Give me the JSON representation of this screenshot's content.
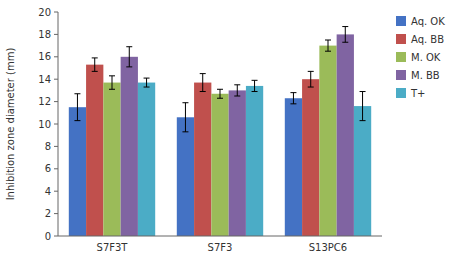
{
  "chart_data": {
    "type": "bar",
    "ylabel": "Inhibition zone diameter (mm)",
    "categories": [
      "S7F3T",
      "S7F3",
      "S13PC6"
    ],
    "series": [
      {
        "name": "Aq. OK",
        "color": "#4472C4",
        "values": [
          11.5,
          10.6,
          12.3
        ],
        "errors": [
          1.2,
          1.3,
          0.5
        ]
      },
      {
        "name": "Aq. BB",
        "color": "#C0504D",
        "values": [
          15.3,
          13.7,
          14.0
        ],
        "errors": [
          0.6,
          0.8,
          0.7
        ]
      },
      {
        "name": "M. OK",
        "color": "#9BBB59",
        "values": [
          13.7,
          12.7,
          17.0
        ],
        "errors": [
          0.6,
          0.4,
          0.5
        ]
      },
      {
        "name": "M. BB",
        "color": "#8064A2",
        "values": [
          16.0,
          13.0,
          18.0
        ],
        "errors": [
          0.9,
          0.5,
          0.7
        ]
      },
      {
        "name": "T+",
        "color": "#4BACC6",
        "values": [
          13.7,
          13.4,
          11.6
        ],
        "errors": [
          0.4,
          0.5,
          1.3
        ]
      }
    ],
    "ylim": [
      0,
      20
    ],
    "yticks": [
      0,
      2,
      4,
      6,
      8,
      10,
      12,
      14,
      16,
      18,
      20
    ],
    "grid": false,
    "legend": "right"
  }
}
